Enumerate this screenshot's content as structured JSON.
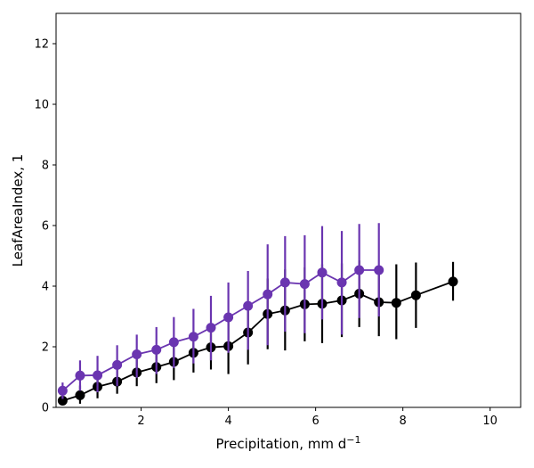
{
  "chart_data": {
    "type": "line",
    "xlabel": "Precipitation,  mm d",
    "xlabel_sup": "−1",
    "ylabel": "LeafAreaIndex,  1",
    "xlim": [
      0.05,
      10.7
    ],
    "ylim": [
      0,
      13
    ],
    "xticks": [
      2,
      4,
      6,
      8,
      10
    ],
    "yticks": [
      0,
      2,
      4,
      6,
      8,
      10,
      12
    ],
    "xtick_labels": [
      "2",
      "4",
      "6",
      "8",
      "10"
    ],
    "ytick_labels": [
      "0",
      "2",
      "4",
      "6",
      "8",
      "10",
      "12"
    ],
    "grid": false,
    "legend": "none",
    "series": [
      {
        "color": "#000000",
        "x": [
          0.2,
          0.6,
          1.0,
          1.45,
          1.9,
          2.35,
          2.75,
          3.2,
          3.6,
          4.0,
          4.45,
          4.9,
          5.3,
          5.75,
          6.15,
          6.6,
          7.0,
          7.45,
          7.85,
          8.3,
          9.15
        ],
        "y": [
          0.22,
          0.4,
          0.68,
          0.85,
          1.15,
          1.33,
          1.5,
          1.8,
          1.98,
          2.02,
          2.47,
          3.08,
          3.2,
          3.4,
          3.42,
          3.53,
          3.75,
          3.47,
          3.45,
          3.7,
          4.15
        ],
        "err_low": [
          0.08,
          0.12,
          0.3,
          0.45,
          0.7,
          0.8,
          0.9,
          1.15,
          1.25,
          1.1,
          1.42,
          1.92,
          1.88,
          2.18,
          2.12,
          2.32,
          2.65,
          2.35,
          2.25,
          2.62,
          3.52
        ],
        "err_high": [
          0.38,
          0.72,
          1.1,
          1.3,
          1.6,
          1.85,
          2.12,
          2.48,
          2.72,
          2.95,
          3.5,
          4.25,
          4.55,
          4.62,
          4.72,
          4.75,
          4.85,
          4.6,
          4.72,
          4.78,
          4.8
        ]
      },
      {
        "color": "#6a35b0",
        "x": [
          0.2,
          0.6,
          1.0,
          1.45,
          1.9,
          2.35,
          2.75,
          3.2,
          3.6,
          4.0,
          4.45,
          4.9,
          5.3,
          5.75,
          6.15,
          6.6,
          7.0,
          7.45
        ],
        "y": [
          0.55,
          1.05,
          1.06,
          1.4,
          1.75,
          1.9,
          2.15,
          2.33,
          2.63,
          2.97,
          3.35,
          3.73,
          4.12,
          4.07,
          4.45,
          4.12,
          4.53,
          4.53
        ],
        "err_low": [
          0.28,
          0.55,
          0.5,
          0.7,
          0.98,
          1.1,
          1.3,
          1.45,
          1.55,
          1.8,
          1.9,
          2.05,
          2.5,
          2.45,
          2.9,
          2.4,
          2.95,
          3.0
        ],
        "err_high": [
          0.82,
          1.55,
          1.7,
          2.05,
          2.4,
          2.65,
          2.98,
          3.25,
          3.68,
          4.12,
          4.5,
          5.38,
          5.65,
          5.68,
          5.98,
          5.82,
          6.05,
          6.08
        ]
      }
    ]
  }
}
